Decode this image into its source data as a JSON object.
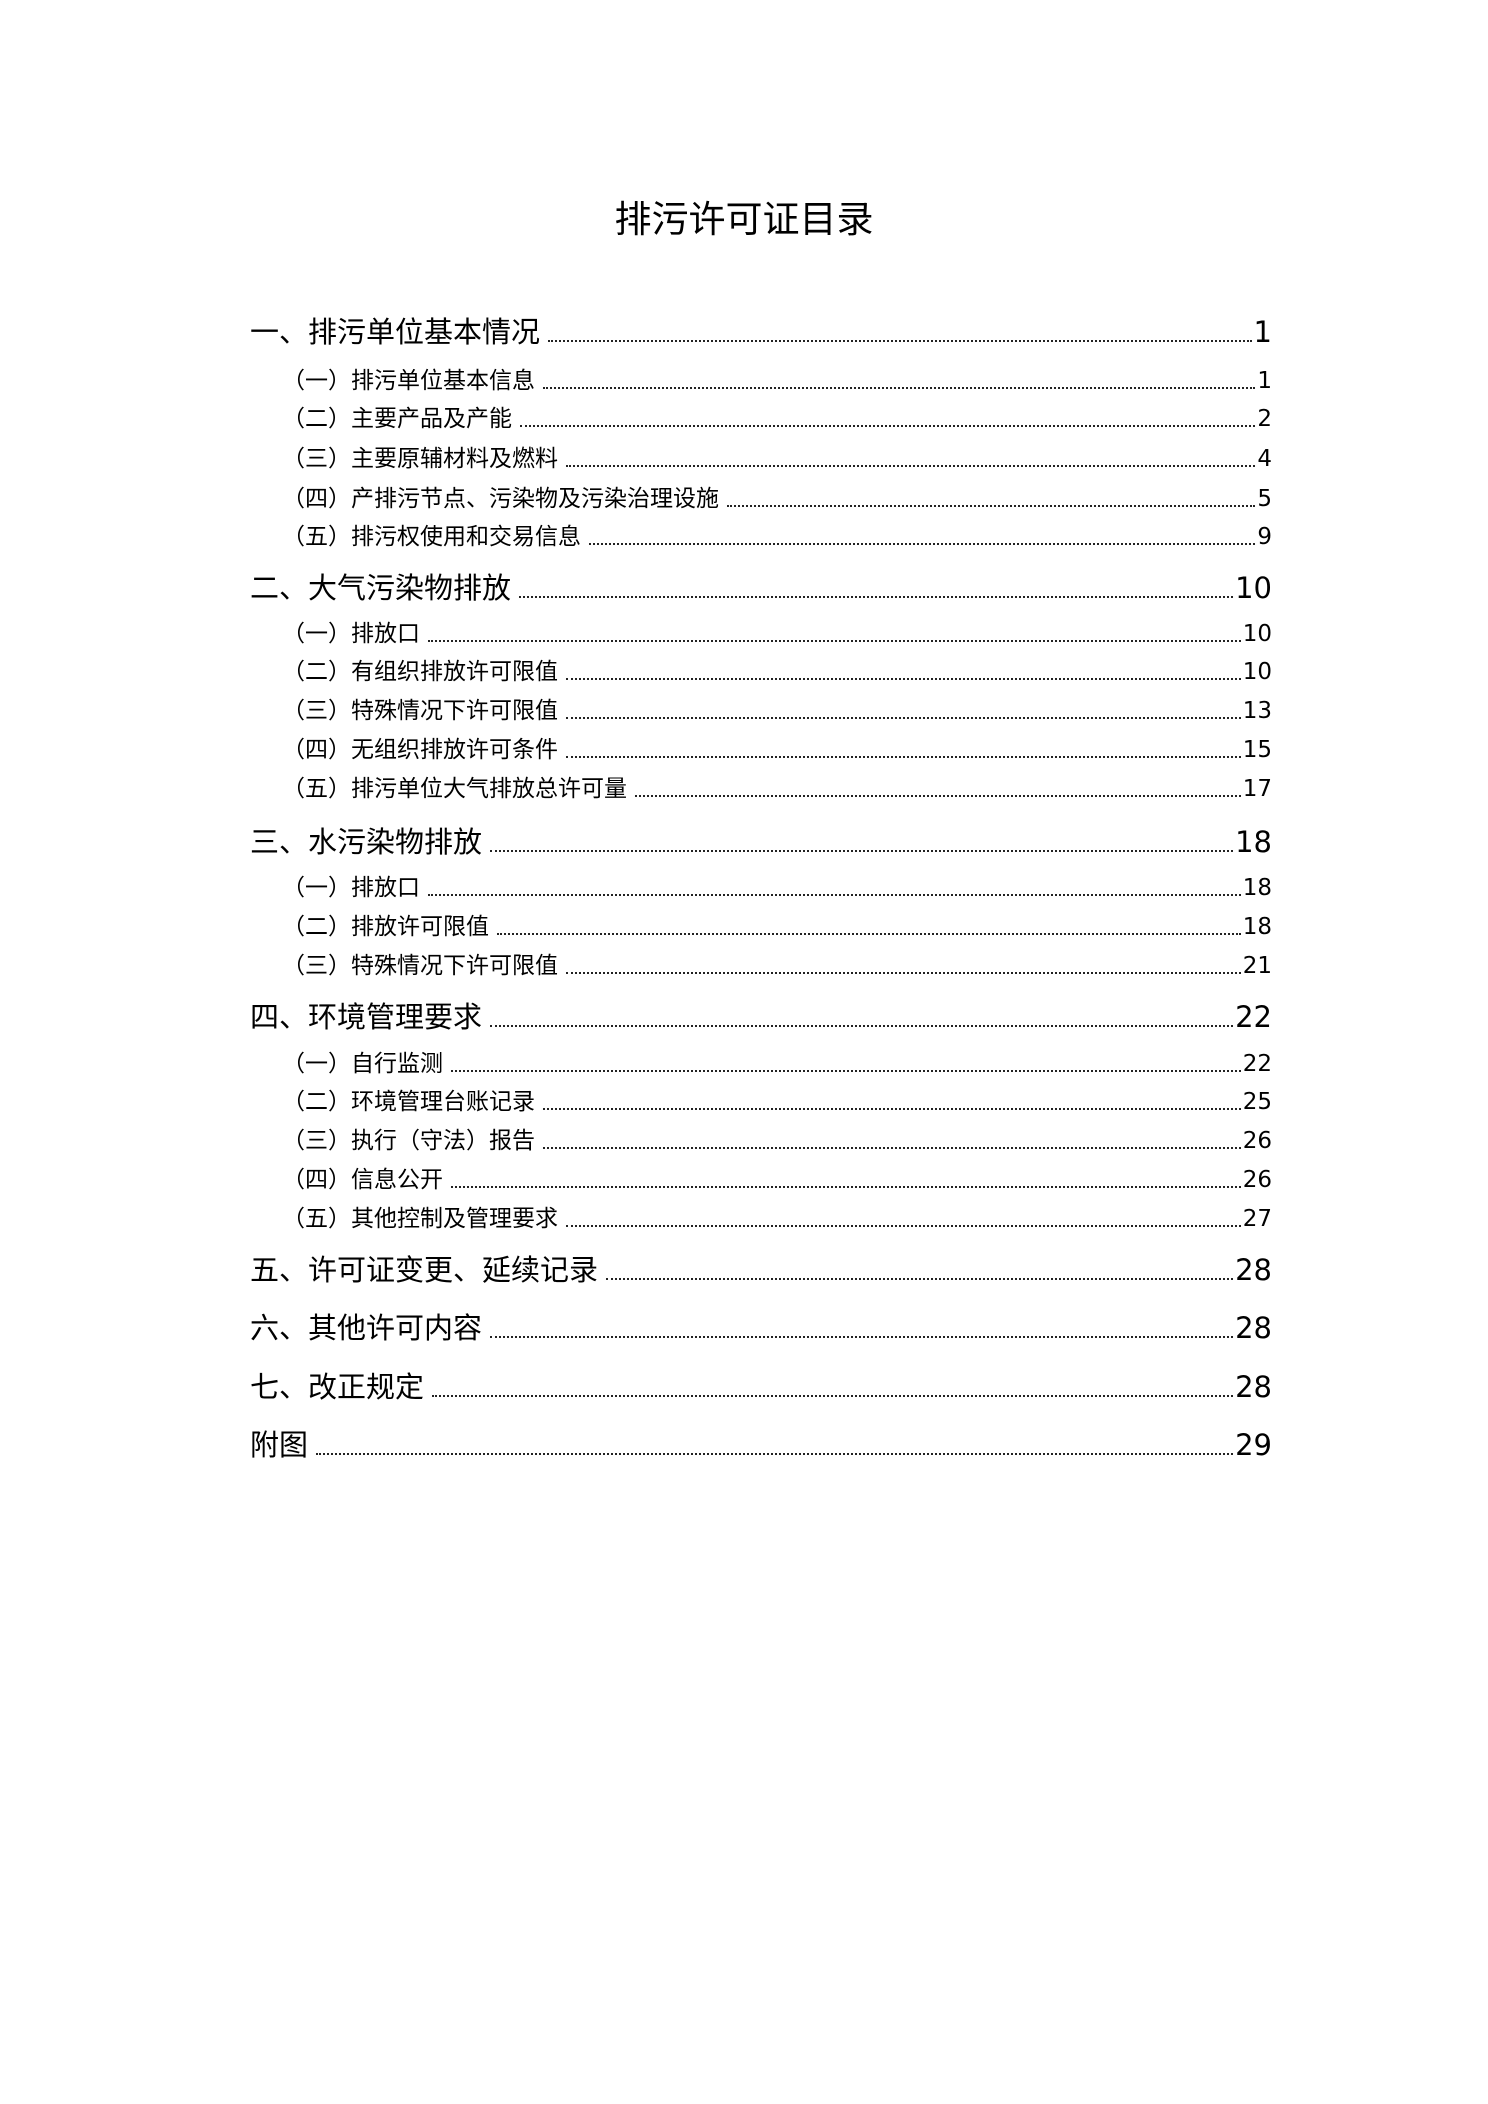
{
  "title": "排污许可证目录",
  "toc": [
    {
      "level": 1,
      "label": "一、排污单位基本情况",
      "page": "1"
    },
    {
      "level": 2,
      "label": "（一）排污单位基本信息",
      "page": "1"
    },
    {
      "level": 2,
      "label": "（二）主要产品及产能",
      "page": "2"
    },
    {
      "level": 2,
      "label": "（三）主要原辅材料及燃料",
      "page": "4"
    },
    {
      "level": 2,
      "label": "（四）产排污节点、污染物及污染治理设施",
      "page": "5"
    },
    {
      "level": 2,
      "label": "（五）排污权使用和交易信息",
      "page": "9"
    },
    {
      "level": 1,
      "label": "二、大气污染物排放",
      "page": "10"
    },
    {
      "level": 2,
      "label": "（一）排放口",
      "page": "10"
    },
    {
      "level": 2,
      "label": "（二）有组织排放许可限值",
      "page": "10"
    },
    {
      "level": 2,
      "label": "（三）特殊情况下许可限值",
      "page": "13"
    },
    {
      "level": 2,
      "label": "（四）无组织排放许可条件",
      "page": "15"
    },
    {
      "level": 2,
      "label": "（五）排污单位大气排放总许可量",
      "page": "17"
    },
    {
      "level": 1,
      "label": "三、水污染物排放",
      "page": "18"
    },
    {
      "level": 2,
      "label": "（一）排放口",
      "page": "18"
    },
    {
      "level": 2,
      "label": "（二）排放许可限值",
      "page": "18"
    },
    {
      "level": 2,
      "label": "（三）特殊情况下许可限值",
      "page": "21"
    },
    {
      "level": 1,
      "label": "四、环境管理要求",
      "page": "22"
    },
    {
      "level": 2,
      "label": "（一）自行监测",
      "page": "22"
    },
    {
      "level": 2,
      "label": "（二）环境管理台账记录",
      "page": "25"
    },
    {
      "level": 2,
      "label": "（三）执行（守法）报告",
      "page": "26"
    },
    {
      "level": 2,
      "label": "（四）信息公开",
      "page": "26"
    },
    {
      "level": 2,
      "label": "（五）其他控制及管理要求",
      "page": "27"
    },
    {
      "level": 1,
      "label": "五、许可证变更、延续记录",
      "page": "28"
    },
    {
      "level": 1,
      "label": "六、其他许可内容",
      "page": "28"
    },
    {
      "level": 1,
      "label": "七、改正规定",
      "page": "28"
    },
    {
      "level": 1,
      "label": "附图",
      "page": "29"
    }
  ]
}
